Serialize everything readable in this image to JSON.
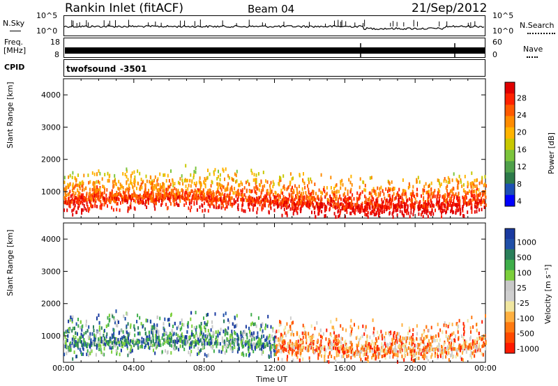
{
  "header": {
    "station": "Rankin Inlet (fitACF)",
    "beam": "Beam 04",
    "date": "21/Sep/2012"
  },
  "nsky_panel": {
    "left_label": "N.Sky",
    "left_ticks": [
      "10^5",
      "10^0"
    ],
    "right_ticks": [
      "10^5",
      "10^0"
    ],
    "right_label": "N.Search"
  },
  "freq_panel": {
    "left_label_1": "Freq.",
    "left_label_2": "[MHz]",
    "left_ticks": [
      "18",
      "8"
    ],
    "right_ticks": [
      "60",
      "0"
    ],
    "right_label": "Nave"
  },
  "cpid": {
    "label": "CPID",
    "program": "twofsound",
    "id": "-3501"
  },
  "chart_data": [
    {
      "type": "heatmap",
      "panel": "power",
      "ylabel": "Slant Range [km]",
      "ylim": [
        180,
        4500
      ],
      "yticks": [
        "1000",
        "2000",
        "3000",
        "4000"
      ],
      "xlim_hours": [
        0,
        24
      ],
      "colorbar_label": "Power [dB]",
      "colorbar_ticks": [
        "28",
        "24",
        "20",
        "16",
        "12",
        "8",
        "4"
      ],
      "colorbar_colors": [
        "#0000ff",
        "#1e50b4",
        "#2d7a4a",
        "#4fa04a",
        "#7cc43c",
        "#c8c800",
        "#ffb400",
        "#ff8c00",
        "#ff5a00",
        "#ff2200",
        "#e00000"
      ]
    },
    {
      "type": "heatmap",
      "panel": "velocity",
      "ylabel": "Slant Range [km]",
      "ylim": [
        180,
        4500
      ],
      "yticks": [
        "1000",
        "2000",
        "3000",
        "4000"
      ],
      "xlim_hours": [
        0,
        24
      ],
      "xlabel": "Time UT",
      "xticks": [
        "00:00",
        "04:00",
        "08:00",
        "12:00",
        "16:00",
        "20:00",
        "00:00"
      ],
      "colorbar_label": "Velocity [m s⁻¹]",
      "colorbar_ticks": [
        "1000",
        "500",
        "100",
        "25",
        "-25",
        "-100",
        "-500",
        "-1000"
      ],
      "colorbar_colors": [
        "#ff1a00",
        "#ff4a00",
        "#ff7a10",
        "#ffb040",
        "#f0e6a0",
        "#cfcfcf",
        "#c8c8c8",
        "#7ccf3c",
        "#3fae4a",
        "#2a7f5a",
        "#2050a8",
        "#1a3aa0"
      ]
    }
  ]
}
